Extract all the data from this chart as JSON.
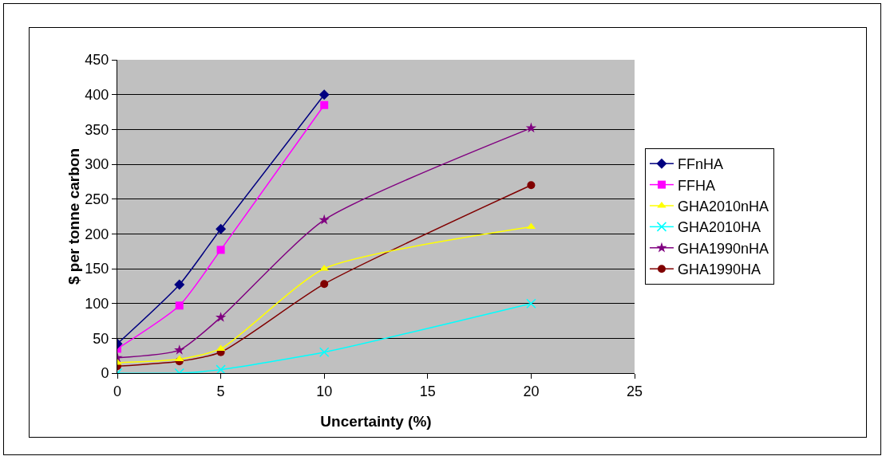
{
  "chart_data": {
    "type": "line",
    "xlabel": "Uncertainty (%)",
    "ylabel": "$ per tonne carbon",
    "x": [
      0,
      3,
      5,
      10,
      20
    ],
    "series": [
      {
        "name": "FFnHA",
        "color": "#000080",
        "marker": "diamond",
        "values": [
          42,
          127,
          207,
          400,
          null
        ]
      },
      {
        "name": "FFHA",
        "color": "#ff00ff",
        "marker": "square",
        "values": [
          35,
          97,
          177,
          385,
          null
        ]
      },
      {
        "name": "GHA2010nHA",
        "color": "#ffff00",
        "marker": "triangle",
        "values": [
          15,
          20,
          35,
          150,
          210
        ]
      },
      {
        "name": "GHA2010HA",
        "color": "#00ffff",
        "marker": "cross",
        "values": [
          0,
          0,
          5,
          30,
          100
        ]
      },
      {
        "name": "GHA1990nHA",
        "color": "#800080",
        "marker": "star",
        "values": [
          22,
          33,
          80,
          220,
          352
        ]
      },
      {
        "name": "GHA1990HA",
        "color": "#800000",
        "marker": "circle",
        "values": [
          10,
          17,
          30,
          128,
          270
        ]
      }
    ],
    "xlim": [
      0,
      25
    ],
    "xticks": [
      0,
      5,
      10,
      15,
      20,
      25
    ],
    "ylim": [
      0,
      450
    ],
    "yticks": [
      0,
      50,
      100,
      150,
      200,
      250,
      300,
      350,
      400,
      450
    ],
    "grid": "y",
    "legend": "right",
    "line_style": "solid"
  }
}
